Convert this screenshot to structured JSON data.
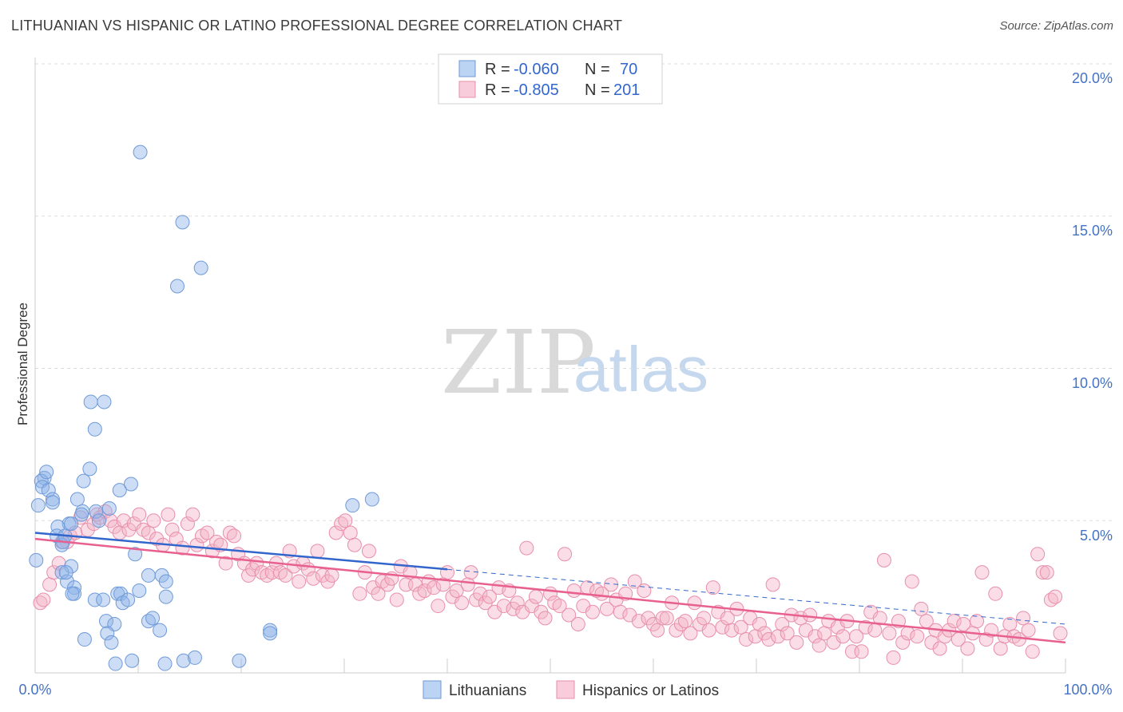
{
  "header": {
    "title": "LITHUANIAN VS HISPANIC OR LATINO PROFESSIONAL DEGREE CORRELATION CHART",
    "source": "Source: ZipAtlas.com"
  },
  "colors": {
    "blue": "#8fb3e8",
    "blue_stroke": "#6f9ad8",
    "blue_line": "#3366cc",
    "pink": "#f4b3c8",
    "pink_stroke": "#e88fab",
    "pink_line": "#e8608f",
    "tick_text": "#4472c4"
  },
  "legend": {
    "rows": [
      {
        "r_label": "R = ",
        "r_value": "-0.060",
        "n_label": "N = ",
        "n_value": "70",
        "color": "blue"
      },
      {
        "r_label": "R = ",
        "r_value": "-0.805",
        "n_label": "N = ",
        "n_value": "201",
        "color": "pink"
      }
    ]
  },
  "watermark": {
    "zip": "ZIP",
    "atlas": "atlas"
  },
  "chart_data": {
    "type": "scatter",
    "ylabel": "Professional Degree",
    "xlabel": "",
    "xlim": [
      0,
      100
    ],
    "ylim": [
      0,
      20
    ],
    "x_tick_labels": [
      "0.0%",
      "100.0%"
    ],
    "y_ticks": [
      5,
      10,
      15,
      20
    ],
    "y_tick_labels": [
      "5.0%",
      "10.0%",
      "15.0%",
      "20.0%"
    ],
    "grid": true,
    "series": [
      {
        "name": "Lithuanians",
        "color": "blue",
        "trend": {
          "x0": 0,
          "y0": 4.6,
          "x1": 40,
          "y1": 3.4,
          "dashed_to_x": 100,
          "dashed_to_y": 1.6
        },
        "points": [
          [
            10.2,
            17.1
          ],
          [
            14.3,
            14.8
          ],
          [
            16.1,
            13.3
          ],
          [
            13.8,
            12.7
          ],
          [
            5.4,
            8.9
          ],
          [
            6.7,
            8.9
          ],
          [
            5.8,
            8.0
          ],
          [
            0.9,
            6.4
          ],
          [
            0.6,
            6.3
          ],
          [
            1.1,
            6.6
          ],
          [
            0.7,
            6.1
          ],
          [
            1.3,
            6.0
          ],
          [
            1.7,
            5.7
          ],
          [
            1.7,
            5.6
          ],
          [
            0.3,
            5.5
          ],
          [
            4.7,
            6.3
          ],
          [
            9.3,
            6.2
          ],
          [
            8.2,
            6.0
          ],
          [
            5.3,
            6.7
          ],
          [
            4.1,
            5.7
          ],
          [
            4.6,
            5.3
          ],
          [
            5.9,
            5.3
          ],
          [
            7.2,
            5.4
          ],
          [
            6.2,
            5.0
          ],
          [
            4.5,
            5.2
          ],
          [
            3.3,
            4.9
          ],
          [
            2.2,
            4.8
          ],
          [
            2.1,
            4.5
          ],
          [
            2.7,
            4.3
          ],
          [
            2.6,
            4.2
          ],
          [
            2.9,
            4.5
          ],
          [
            0.1,
            3.7
          ],
          [
            9.7,
            3.9
          ],
          [
            3.5,
            3.5
          ],
          [
            2.6,
            3.3
          ],
          [
            3.1,
            3.0
          ],
          [
            3.0,
            3.3
          ],
          [
            3.8,
            2.8
          ],
          [
            11.0,
            3.2
          ],
          [
            12.3,
            3.2
          ],
          [
            12.7,
            3.0
          ],
          [
            3.8,
            2.6
          ],
          [
            3.6,
            2.6
          ],
          [
            8.0,
            2.6
          ],
          [
            8.3,
            2.6
          ],
          [
            10.1,
            2.7
          ],
          [
            12.7,
            2.5
          ],
          [
            5.8,
            2.4
          ],
          [
            6.6,
            2.4
          ],
          [
            8.5,
            2.3
          ],
          [
            9.0,
            2.4
          ],
          [
            6.9,
            1.7
          ],
          [
            11.0,
            1.7
          ],
          [
            11.4,
            1.8
          ],
          [
            7.7,
            1.6
          ],
          [
            12.1,
            1.4
          ],
          [
            7.0,
            1.3
          ],
          [
            7.4,
            1.0
          ],
          [
            4.8,
            1.1
          ],
          [
            22.8,
            1.4
          ],
          [
            22.8,
            1.3
          ],
          [
            7.8,
            0.3
          ],
          [
            9.4,
            0.4
          ],
          [
            12.6,
            0.3
          ],
          [
            14.4,
            0.4
          ],
          [
            15.5,
            0.5
          ],
          [
            19.8,
            0.4
          ],
          [
            30.8,
            5.5
          ],
          [
            32.7,
            5.7
          ],
          [
            3.5,
            4.9
          ]
        ]
      },
      {
        "name": "Hispanics or Latinos",
        "color": "pink",
        "trend": {
          "x0": 0,
          "y0": 4.4,
          "x1": 100,
          "y1": 1.0
        },
        "points": [
          [
            0.5,
            2.3
          ],
          [
            0.8,
            2.4
          ],
          [
            1.4,
            2.9
          ],
          [
            1.8,
            3.3
          ],
          [
            2.3,
            3.6
          ],
          [
            2.6,
            4.3
          ],
          [
            3.1,
            4.3
          ],
          [
            3.4,
            4.5
          ],
          [
            3.9,
            4.6
          ],
          [
            4.4,
            5.1
          ],
          [
            5.1,
            4.7
          ],
          [
            5.7,
            4.9
          ],
          [
            6.0,
            5.2
          ],
          [
            6.3,
            5.1
          ],
          [
            6.8,
            5.3
          ],
          [
            7.3,
            5.0
          ],
          [
            7.7,
            4.8
          ],
          [
            8.2,
            4.6
          ],
          [
            8.6,
            5.0
          ],
          [
            9.1,
            4.7
          ],
          [
            9.6,
            4.9
          ],
          [
            10.1,
            5.2
          ],
          [
            10.5,
            4.7
          ],
          [
            11.0,
            4.6
          ],
          [
            11.5,
            5.0
          ],
          [
            11.8,
            4.4
          ],
          [
            12.4,
            4.2
          ],
          [
            12.9,
            5.2
          ],
          [
            13.3,
            4.7
          ],
          [
            13.7,
            4.4
          ],
          [
            14.3,
            4.1
          ],
          [
            14.8,
            4.9
          ],
          [
            15.3,
            5.2
          ],
          [
            15.7,
            4.2
          ],
          [
            16.2,
            4.5
          ],
          [
            16.7,
            4.6
          ],
          [
            17.2,
            4.0
          ],
          [
            17.6,
            4.3
          ],
          [
            18.0,
            4.2
          ],
          [
            18.5,
            3.6
          ],
          [
            18.9,
            4.6
          ],
          [
            19.3,
            4.5
          ],
          [
            19.7,
            3.9
          ],
          [
            20.3,
            3.6
          ],
          [
            20.7,
            3.2
          ],
          [
            21.1,
            3.4
          ],
          [
            21.5,
            3.6
          ],
          [
            22.0,
            3.3
          ],
          [
            22.5,
            3.2
          ],
          [
            23.0,
            3.3
          ],
          [
            23.4,
            3.6
          ],
          [
            23.8,
            3.3
          ],
          [
            24.3,
            3.2
          ],
          [
            24.7,
            4.0
          ],
          [
            25.1,
            3.5
          ],
          [
            25.6,
            3.0
          ],
          [
            26.0,
            3.6
          ],
          [
            26.5,
            3.4
          ],
          [
            27.0,
            3.1
          ],
          [
            27.4,
            4.0
          ],
          [
            27.9,
            3.2
          ],
          [
            28.4,
            3.0
          ],
          [
            28.8,
            3.2
          ],
          [
            29.2,
            4.6
          ],
          [
            29.7,
            4.9
          ],
          [
            30.1,
            5.0
          ],
          [
            30.6,
            4.6
          ],
          [
            31.0,
            4.2
          ],
          [
            31.5,
            2.6
          ],
          [
            32.0,
            3.3
          ],
          [
            32.4,
            4.0
          ],
          [
            32.8,
            2.8
          ],
          [
            33.3,
            2.6
          ],
          [
            33.7,
            3.0
          ],
          [
            34.2,
            2.9
          ],
          [
            34.6,
            3.1
          ],
          [
            35.1,
            2.4
          ],
          [
            35.5,
            3.5
          ],
          [
            36.0,
            2.9
          ],
          [
            36.4,
            3.3
          ],
          [
            36.9,
            2.9
          ],
          [
            37.3,
            2.6
          ],
          [
            37.8,
            2.7
          ],
          [
            38.2,
            3.0
          ],
          [
            38.7,
            2.8
          ],
          [
            39.1,
            2.2
          ],
          [
            39.6,
            2.9
          ],
          [
            40.0,
            3.3
          ],
          [
            40.5,
            2.5
          ],
          [
            40.9,
            2.7
          ],
          [
            41.4,
            2.3
          ],
          [
            42.0,
            2.9
          ],
          [
            42.3,
            3.3
          ],
          [
            42.8,
            2.4
          ],
          [
            43.2,
            2.6
          ],
          [
            43.7,
            2.3
          ],
          [
            44.1,
            2.5
          ],
          [
            44.6,
            2.0
          ],
          [
            45.0,
            2.8
          ],
          [
            45.5,
            2.2
          ],
          [
            46.0,
            2.7
          ],
          [
            46.4,
            2.1
          ],
          [
            46.8,
            2.3
          ],
          [
            47.3,
            2.0
          ],
          [
            47.7,
            4.1
          ],
          [
            48.2,
            2.2
          ],
          [
            48.6,
            2.5
          ],
          [
            49.1,
            2.0
          ],
          [
            49.5,
            1.8
          ],
          [
            50.0,
            2.6
          ],
          [
            50.4,
            2.3
          ],
          [
            50.9,
            2.2
          ],
          [
            51.4,
            3.9
          ],
          [
            51.8,
            1.9
          ],
          [
            52.3,
            2.7
          ],
          [
            52.7,
            1.6
          ],
          [
            53.2,
            2.2
          ],
          [
            53.6,
            2.8
          ],
          [
            54.1,
            2.0
          ],
          [
            54.5,
            2.7
          ],
          [
            55.0,
            2.6
          ],
          [
            55.5,
            2.1
          ],
          [
            55.9,
            2.9
          ],
          [
            56.4,
            2.4
          ],
          [
            56.8,
            2.0
          ],
          [
            57.3,
            2.6
          ],
          [
            57.7,
            1.9
          ],
          [
            58.2,
            3.0
          ],
          [
            58.6,
            1.7
          ],
          [
            59.1,
            2.7
          ],
          [
            59.5,
            1.8
          ],
          [
            60.0,
            1.6
          ],
          [
            60.4,
            1.4
          ],
          [
            60.9,
            1.8
          ],
          [
            61.3,
            1.8
          ],
          [
            61.8,
            2.3
          ],
          [
            62.2,
            1.4
          ],
          [
            62.7,
            1.6
          ],
          [
            63.1,
            1.7
          ],
          [
            63.6,
            1.3
          ],
          [
            64.0,
            2.3
          ],
          [
            64.5,
            1.6
          ],
          [
            64.9,
            1.8
          ],
          [
            65.4,
            1.4
          ],
          [
            65.8,
            2.8
          ],
          [
            66.3,
            2.0
          ],
          [
            66.7,
            1.5
          ],
          [
            67.2,
            1.8
          ],
          [
            67.6,
            1.4
          ],
          [
            68.1,
            2.1
          ],
          [
            68.5,
            1.5
          ],
          [
            69.0,
            1.1
          ],
          [
            69.4,
            1.8
          ],
          [
            69.9,
            1.2
          ],
          [
            70.3,
            1.6
          ],
          [
            70.8,
            1.3
          ],
          [
            71.2,
            1.1
          ],
          [
            71.6,
            2.9
          ],
          [
            72.1,
            1.2
          ],
          [
            72.5,
            1.6
          ],
          [
            73.0,
            1.3
          ],
          [
            73.4,
            1.9
          ],
          [
            73.9,
            1.0
          ],
          [
            74.3,
            1.8
          ],
          [
            74.8,
            1.4
          ],
          [
            75.2,
            1.9
          ],
          [
            75.7,
            1.2
          ],
          [
            76.1,
            0.9
          ],
          [
            76.6,
            1.3
          ],
          [
            77.0,
            1.7
          ],
          [
            77.5,
            1.0
          ],
          [
            77.9,
            1.5
          ],
          [
            78.4,
            1.2
          ],
          [
            78.8,
            1.7
          ],
          [
            79.3,
            0.7
          ],
          [
            79.7,
            1.2
          ],
          [
            80.2,
            0.7
          ],
          [
            80.6,
            1.5
          ],
          [
            81.1,
            2.0
          ],
          [
            81.5,
            1.4
          ],
          [
            82.0,
            1.8
          ],
          [
            82.4,
            3.7
          ],
          [
            82.9,
            1.3
          ],
          [
            83.3,
            0.5
          ],
          [
            83.8,
            1.7
          ],
          [
            84.2,
            1.0
          ],
          [
            84.7,
            1.3
          ],
          [
            85.1,
            3.0
          ],
          [
            85.6,
            1.2
          ],
          [
            86.0,
            2.1
          ],
          [
            86.5,
            1.7
          ],
          [
            87.0,
            1.0
          ],
          [
            87.4,
            1.4
          ],
          [
            87.8,
            0.8
          ],
          [
            88.3,
            1.2
          ],
          [
            88.7,
            1.4
          ],
          [
            89.2,
            1.7
          ],
          [
            89.6,
            1.1
          ],
          [
            90.1,
            1.6
          ],
          [
            90.5,
            0.8
          ],
          [
            91.0,
            1.3
          ],
          [
            91.4,
            1.7
          ],
          [
            91.9,
            3.3
          ],
          [
            92.3,
            1.1
          ],
          [
            92.8,
            1.4
          ],
          [
            93.2,
            2.6
          ],
          [
            93.7,
            0.8
          ],
          [
            94.1,
            1.2
          ],
          [
            94.6,
            1.6
          ],
          [
            95.0,
            1.2
          ],
          [
            95.5,
            1.1
          ],
          [
            95.9,
            1.8
          ],
          [
            96.4,
            1.4
          ],
          [
            96.8,
            0.7
          ],
          [
            97.3,
            3.9
          ],
          [
            97.8,
            3.3
          ],
          [
            98.2,
            3.3
          ],
          [
            98.6,
            2.4
          ],
          [
            99.0,
            2.5
          ],
          [
            99.5,
            1.3
          ]
        ]
      }
    ]
  },
  "bottom_legend": {
    "items": [
      {
        "label": "Lithuanians",
        "color": "blue"
      },
      {
        "label": "Hispanics or Latinos",
        "color": "pink"
      }
    ]
  }
}
